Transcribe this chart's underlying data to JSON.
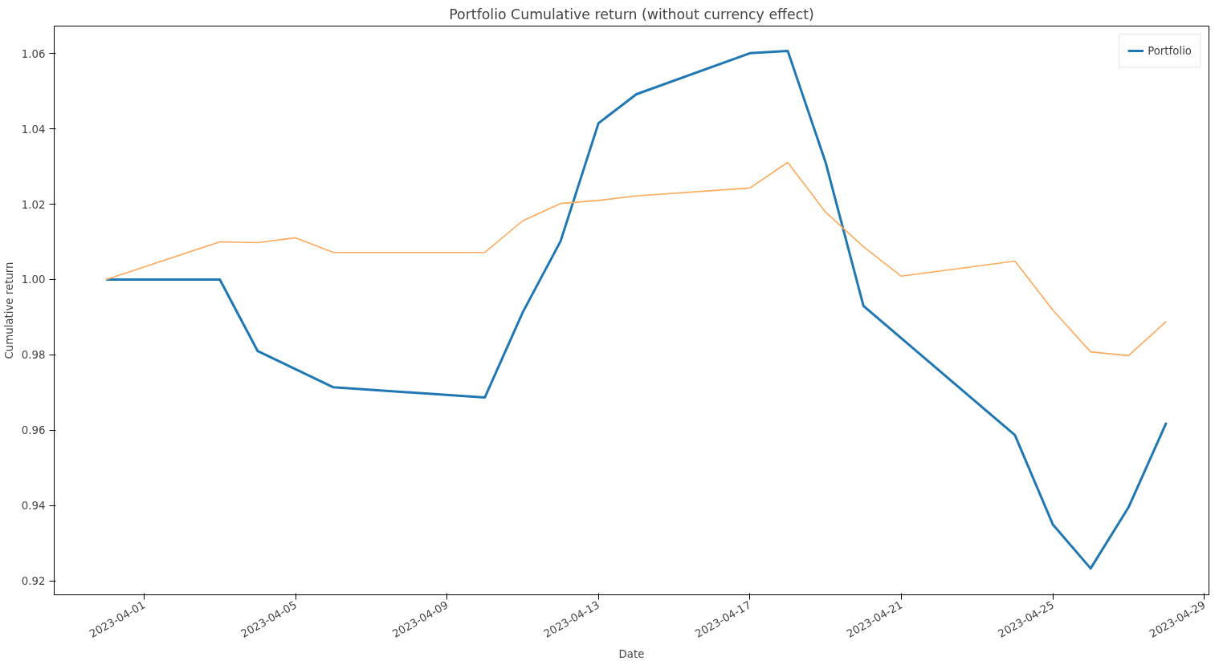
{
  "chart_data": {
    "type": "line",
    "title": "Portfolio Cumulative return (without currency effect)",
    "xlabel": "Date",
    "ylabel": "Cumulative return",
    "xlim": [
      "2023-03-29T15:00",
      "2023-04-29T03:00"
    ],
    "ylim": [
      0.9163,
      1.0673
    ],
    "xticks": [
      "2023-04-01",
      "2023-04-05",
      "2023-04-09",
      "2023-04-13",
      "2023-04-17",
      "2023-04-21",
      "2023-04-25",
      "2023-04-29"
    ],
    "yticks": [
      {
        "value": 0.92,
        "label": "0.92"
      },
      {
        "value": 0.94,
        "label": "0.94"
      },
      {
        "value": 0.96,
        "label": "0.96"
      },
      {
        "value": 0.98,
        "label": "0.98"
      },
      {
        "value": 1.0,
        "label": "1.00"
      },
      {
        "value": 1.02,
        "label": "1.02"
      },
      {
        "value": 1.04,
        "label": "1.04"
      },
      {
        "value": 1.06,
        "label": "1.06"
      }
    ],
    "grid": false,
    "legend": "top right",
    "line_style": "solid",
    "marker": "none",
    "series": [
      {
        "name": "Portfolio",
        "color": "#1f77b4",
        "x": [
          "2023-03-31",
          "2023-04-03",
          "2023-04-04",
          "2023-04-06",
          "2023-04-10",
          "2023-04-11",
          "2023-04-12",
          "2023-04-13",
          "2023-04-14",
          "2023-04-17",
          "2023-04-18",
          "2023-04-19",
          "2023-04-20",
          "2023-04-24",
          "2023-04-25",
          "2023-04-26",
          "2023-04-27",
          "2023-04-28"
        ],
        "values": [
          1.0,
          1.0,
          0.981,
          0.9714,
          0.9687,
          0.9913,
          1.0102,
          1.0415,
          1.0492,
          1.0601,
          1.0607,
          1.0311,
          0.993,
          0.9587,
          0.935,
          0.9233,
          0.9395,
          0.962
        ]
      },
      {
        "color": "#ffa95a",
        "x": [
          "2023-03-31",
          "2023-04-03",
          "2023-04-04",
          "2023-04-05",
          "2023-04-06",
          "2023-04-10",
          "2023-04-11",
          "2023-04-12",
          "2023-04-13",
          "2023-04-14",
          "2023-04-17",
          "2023-04-18",
          "2023-04-19",
          "2023-04-20",
          "2023-04-21",
          "2023-04-24",
          "2023-04-25",
          "2023-04-26",
          "2023-04-27",
          "2023-04-28"
        ],
        "values": [
          1.0,
          1.01,
          1.0098,
          1.0111,
          1.0072,
          1.0072,
          1.0156,
          1.0202,
          1.021,
          1.0222,
          1.0243,
          1.0311,
          1.0179,
          1.0087,
          1.0009,
          1.0049,
          0.9919,
          0.9808,
          0.9798,
          0.9889
        ]
      }
    ]
  }
}
